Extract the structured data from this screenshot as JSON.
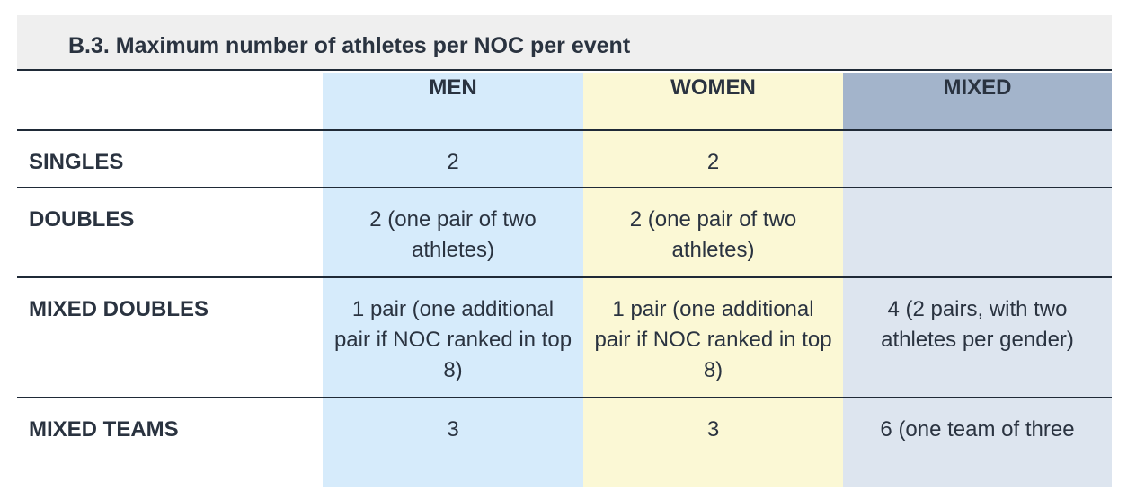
{
  "title": "B.3. Maximum number of athletes per NOC per event",
  "columns": [
    "",
    "MEN",
    "WOMEN",
    "MIXED"
  ],
  "rows": [
    {
      "label": "SINGLES",
      "men": "2",
      "women": "2",
      "mixed": ""
    },
    {
      "label": "DOUBLES",
      "men": "2 (one pair of two athletes)",
      "women": "2 (one pair of two athletes)",
      "mixed": ""
    },
    {
      "label": "MIXED DOUBLES",
      "men": "1 pair (one additional pair if NOC ranked in top 8)",
      "women": "1 pair (one additional pair if NOC ranked in top 8)",
      "mixed": "4 (2 pairs, with two athletes per gender)"
    },
    {
      "label": "MIXED TEAMS",
      "men": "3",
      "women": "3",
      "mixed": "6 (one team of three"
    }
  ],
  "colors": {
    "men": "#d6ebfb",
    "women": "#fbf8d5",
    "mixed": "#dde5ef",
    "mixed_header": "#a3b4cb",
    "title_bar": "#efefef",
    "rule": "#1f2a37"
  }
}
